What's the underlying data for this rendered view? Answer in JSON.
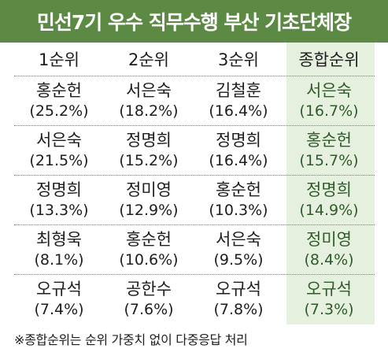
{
  "title": "민선7기 우수 직무수행 부산 기초단체장",
  "footnote": "※종합순위는 순위 가중치 없이 다중응답 처리",
  "colors": {
    "title_bg": "#5c8a45",
    "title_text": "#ffffff",
    "total_col_bg": "#e6f0df",
    "total_text": "#2f5b2a"
  },
  "chart_data": {
    "type": "table",
    "title": "민선7기 우수 직무수행 부산 기초단체장",
    "columns": [
      "1순위",
      "2순위",
      "3순위",
      "종합순위"
    ],
    "rows": [
      [
        {
          "name": "홍순헌",
          "pct": "(25.2%)"
        },
        {
          "name": "서은숙",
          "pct": "(18.2%)"
        },
        {
          "name": "김철훈",
          "pct": "(16.4%)"
        },
        {
          "name": "서은숙",
          "pct": "(16.7%)"
        }
      ],
      [
        {
          "name": "서은숙",
          "pct": "(21.5%)"
        },
        {
          "name": "정명희",
          "pct": "(15.2%)"
        },
        {
          "name": "정명희",
          "pct": "(16.4%)"
        },
        {
          "name": "홍순헌",
          "pct": "(15.7%)"
        }
      ],
      [
        {
          "name": "정명희",
          "pct": "(13.3%)"
        },
        {
          "name": "정미영",
          "pct": "(12.9%)"
        },
        {
          "name": "홍순헌",
          "pct": "(10.3%)"
        },
        {
          "name": "정명희",
          "pct": "(14.9%)"
        }
      ],
      [
        {
          "name": "최형욱",
          "pct": "(8.1%)"
        },
        {
          "name": "홍순헌",
          "pct": "(10.6%)"
        },
        {
          "name": "서은숙",
          "pct": "(9.5%)"
        },
        {
          "name": "정미영",
          "pct": "(8.4%)"
        }
      ],
      [
        {
          "name": "오규석",
          "pct": "(7.4%)"
        },
        {
          "name": "공한수",
          "pct": "(7.6%)"
        },
        {
          "name": "오규석",
          "pct": "(7.8%)"
        },
        {
          "name": "오규석",
          "pct": "(7.3%)"
        }
      ]
    ],
    "footnote": "※종합순위는 순위 가중치 없이 다중응답 처리"
  }
}
